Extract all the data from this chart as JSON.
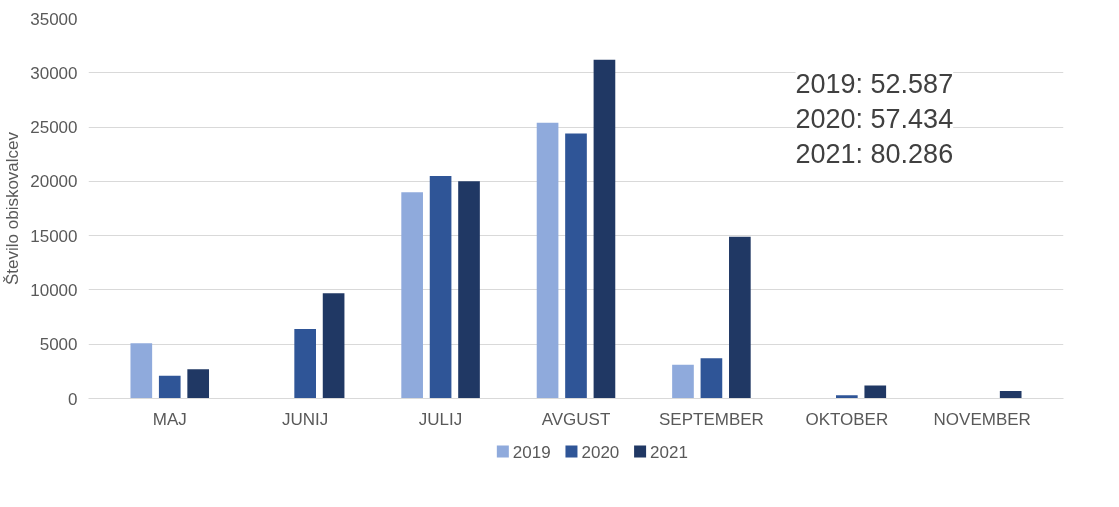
{
  "chart_data": {
    "type": "bar",
    "ylabel": "Število obiskovalcev",
    "categories": [
      "MAJ",
      "JUNIJ",
      "JULIJ",
      "AVGUST",
      "SEPTEMBER",
      "OKTOBER",
      "NOVEMBER"
    ],
    "series": [
      {
        "name": "2019",
        "color": "#8faadc",
        "values": [
          5100,
          null,
          19000,
          25400,
          3100,
          null,
          null
        ]
      },
      {
        "name": "2020",
        "color": "#2f5597",
        "values": [
          2100,
          6400,
          20500,
          24400,
          3700,
          300,
          null
        ]
      },
      {
        "name": "2021",
        "color": "#203864",
        "values": [
          2700,
          9700,
          20000,
          31200,
          14900,
          1200,
          700
        ]
      }
    ],
    "ylim": [
      0,
      35000
    ],
    "yticks": [
      0,
      5000,
      10000,
      15000,
      20000,
      25000,
      30000,
      35000
    ],
    "grid": "y",
    "legend": "bottom",
    "annotations": [
      "2019: 52.587",
      "2020: 57.434",
      "2021: 80.286"
    ]
  }
}
